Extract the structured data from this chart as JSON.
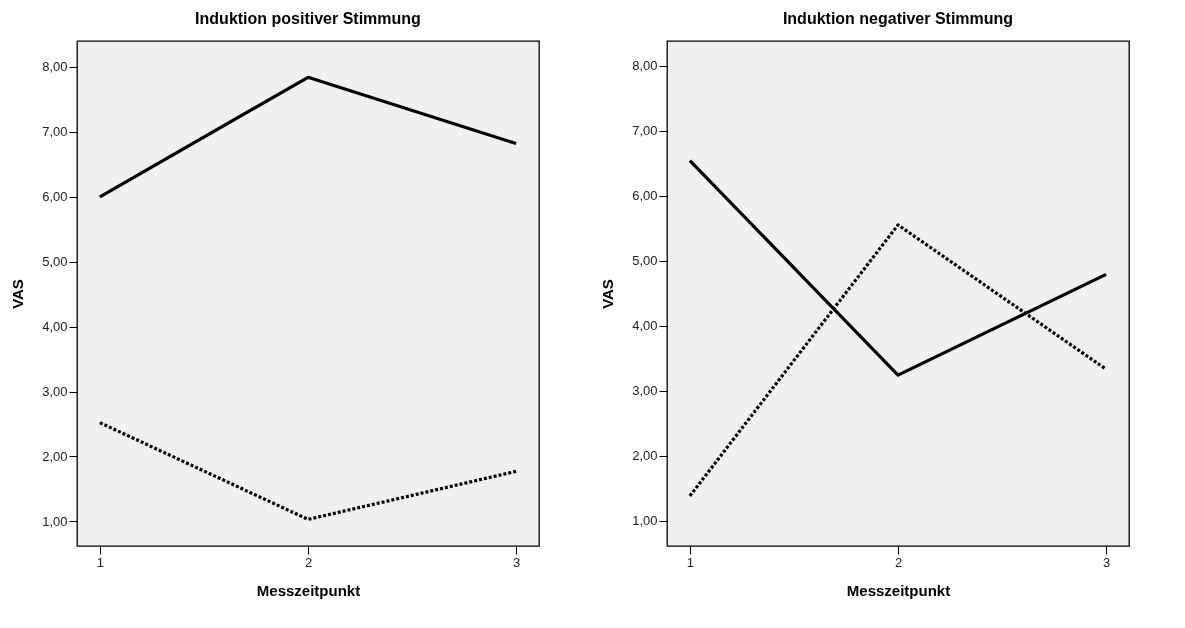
{
  "chart_data": [
    {
      "type": "line",
      "title": "Induktion positiver Stimmung",
      "xlabel": "Messzeitpunkt",
      "ylabel": "VAS",
      "x": [
        1,
        2,
        3
      ],
      "xlim": [
        0.89,
        3.11
      ],
      "xticks": [
        {
          "value": 1,
          "label": "1"
        },
        {
          "value": 2,
          "label": "2"
        },
        {
          "value": 3,
          "label": "3"
        }
      ],
      "ylim": [
        0.62,
        8.4
      ],
      "yticks": [
        {
          "value": 1,
          "label": "1,00"
        },
        {
          "value": 2,
          "label": "2,00"
        },
        {
          "value": 3,
          "label": "3,00"
        },
        {
          "value": 4,
          "label": "4,00"
        },
        {
          "value": 5,
          "label": "5,00"
        },
        {
          "value": 6,
          "label": "6,00"
        },
        {
          "value": 7,
          "label": "7,00"
        },
        {
          "value": 8,
          "label": "8,00"
        }
      ],
      "series": [
        {
          "color": "#000000",
          "line_style": "solid",
          "values": [
            6.0,
            7.84,
            6.82
          ]
        },
        {
          "color": "#000000",
          "line_style": "dotted",
          "values": [
            2.52,
            1.03,
            1.77
          ]
        }
      ]
    },
    {
      "type": "line",
      "title": "Induktion negativer Stimmung",
      "xlabel": "Messzeitpunkt",
      "ylabel": "VAS",
      "x": [
        1,
        2,
        3
      ],
      "xlim": [
        0.89,
        3.11
      ],
      "xticks": [
        {
          "value": 1,
          "label": "1"
        },
        {
          "value": 2,
          "label": "2"
        },
        {
          "value": 3,
          "label": "3"
        }
      ],
      "ylim": [
        0.61,
        8.38
      ],
      "yticks": [
        {
          "value": 1,
          "label": "1,00"
        },
        {
          "value": 2,
          "label": "2,00"
        },
        {
          "value": 3,
          "label": "3,00"
        },
        {
          "value": 4,
          "label": "4,00"
        },
        {
          "value": 5,
          "label": "5,00"
        },
        {
          "value": 6,
          "label": "6,00"
        },
        {
          "value": 7,
          "label": "7,00"
        },
        {
          "value": 8,
          "label": "8,00"
        }
      ],
      "series": [
        {
          "color": "#000000",
          "line_style": "solid",
          "values": [
            6.54,
            3.24,
            4.79
          ]
        },
        {
          "color": "#000000",
          "line_style": "dotted",
          "values": [
            1.38,
            5.55,
            3.33
          ]
        }
      ]
    }
  ]
}
